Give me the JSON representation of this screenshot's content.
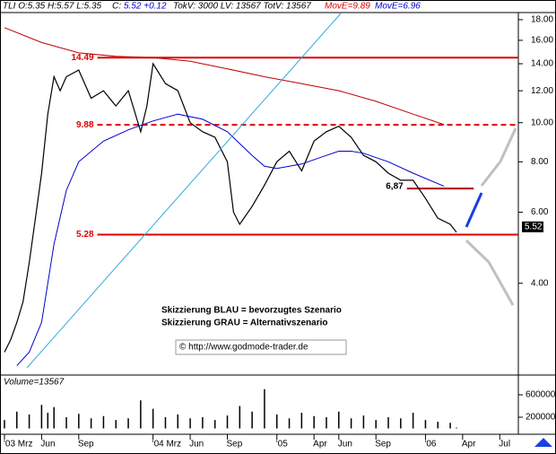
{
  "header": {
    "symbol_ohl": "TLI O:5.35 H:5.57 L:5.35",
    "close_label": "C:",
    "close_change": "5.52 +0.12",
    "volumes": "TokV: 3000 LV: 13567 TotV: 13567",
    "move_red": "MovE=9.89",
    "move_blue": "MovE=6.96"
  },
  "notes": {
    "line1": "Skizzierung BLAU = bevorzugtes Szenario",
    "line2": "Skizzierung GRAU = Alternativszenario",
    "copyright": "© http://www.godmode-trader.de"
  },
  "chart_data": [
    {
      "type": "line",
      "log_scale": true,
      "xlim": [
        1.64,
        43.5
      ],
      "ylim": [
        2.37,
        18.65
      ],
      "xticks": [
        {
          "value": 2,
          "label": "'03 Mrz"
        },
        {
          "value": 5,
          "label": "Jun"
        },
        {
          "value": 8,
          "label": "Sep"
        },
        {
          "value": 14,
          "label": "'04 Mrz"
        },
        {
          "value": 17,
          "label": "Jun"
        },
        {
          "value": 20,
          "label": "Sep"
        },
        {
          "value": 24,
          "label": "'05"
        },
        {
          "value": 27,
          "label": "Apr"
        },
        {
          "value": 29,
          "label": "Jun"
        },
        {
          "value": 32,
          "label": "Sep"
        },
        {
          "value": 36,
          "label": "'06"
        },
        {
          "value": 39,
          "label": "Apr"
        },
        {
          "value": 42,
          "label": "Jul"
        }
      ],
      "yticks": [
        {
          "value": 4,
          "label": "4.00"
        },
        {
          "value": 6,
          "label": "6.00"
        },
        {
          "value": 8,
          "label": "8.00"
        },
        {
          "value": 10,
          "label": "10.00"
        },
        {
          "value": 12,
          "label": "12.00"
        },
        {
          "value": 14,
          "label": "14.00"
        },
        {
          "value": 16,
          "label": "16.00"
        },
        {
          "value": 18,
          "label": "18.00"
        }
      ],
      "series": [
        {
          "color": "#000000",
          "x": [
            2,
            2.5,
            3,
            3.5,
            4,
            4.5,
            5,
            5.5,
            6,
            6.5,
            7,
            8,
            9,
            10,
            11,
            12,
            13,
            13.5,
            14,
            15,
            16,
            17,
            18,
            19,
            20,
            20.5,
            21,
            22,
            23,
            24,
            25,
            26,
            27,
            28,
            29,
            30,
            31,
            32,
            33,
            34,
            35,
            36,
            37,
            38,
            38.5
          ],
          "values": [
            2.7,
            2.9,
            3.2,
            3.6,
            4.5,
            5.8,
            7.5,
            10.5,
            13,
            12,
            13,
            13.5,
            11.5,
            12,
            11,
            12,
            9.5,
            11,
            14,
            12.5,
            12,
            10,
            9.5,
            9.2,
            8,
            6,
            5.6,
            6.2,
            7,
            8,
            8.5,
            7.6,
            9,
            9.5,
            9.8,
            9.2,
            8.3,
            8,
            7.5,
            7.2,
            7.2,
            6.5,
            5.8,
            5.6,
            5.35
          ]
        },
        {
          "color": "#c00000",
          "x": [
            2,
            5,
            8,
            11,
            14,
            17,
            20,
            23,
            26,
            29,
            32,
            35,
            37.5
          ],
          "values": [
            17.2,
            15.8,
            14.9,
            14.6,
            14.5,
            14.2,
            13.6,
            13,
            12.5,
            12,
            11.3,
            10.5,
            9.89
          ]
        },
        {
          "color": "#0000cc",
          "x": [
            3,
            4,
            5,
            5.5,
            6,
            7,
            8,
            10,
            12,
            14,
            16,
            18,
            20,
            22,
            23,
            24,
            26,
            28,
            29,
            30,
            31,
            33,
            35,
            37.5
          ],
          "values": [
            2.5,
            2.7,
            3.2,
            4,
            5,
            6.8,
            8,
            9,
            9.6,
            10.1,
            10.5,
            10.2,
            9.5,
            8.3,
            7.8,
            7.7,
            7.9,
            8.3,
            8.5,
            8.5,
            8.4,
            8,
            7.5,
            6.96
          ]
        }
      ],
      "levels": [
        {
          "value": 14.49,
          "from": 9.5,
          "to": 43.5,
          "dashed": false,
          "color": "#e00000"
        },
        {
          "value": 9.88,
          "from": 9.5,
          "to": 43.5,
          "dashed": true,
          "color": "#e00000"
        },
        {
          "value": 5.28,
          "from": 9.5,
          "to": 43.5,
          "dashed": false,
          "color": "#e00000"
        },
        {
          "value": {
            "value": 6.87,
            "label": "6,87"
          },
          "from": 34.5,
          "to": 39.9,
          "dashed": false,
          "color": "#b00000"
        }
      ],
      "last_price": 5.52
    },
    {
      "type": "bar",
      "title": "Volume=13567",
      "color": "#000000",
      "xlim": [
        1.64,
        43.5
      ],
      "ylim": [
        0,
        888000
      ],
      "yticks": [
        200000,
        600000
      ],
      "x": [
        2,
        3,
        4,
        5,
        5.5,
        6,
        7,
        8,
        9,
        10,
        11,
        12,
        13,
        14,
        15,
        16,
        17,
        18,
        19,
        20,
        21,
        22,
        23,
        24,
        25,
        26,
        27,
        28,
        29,
        30,
        31,
        32,
        33,
        34,
        35,
        36,
        37,
        38,
        38.5
      ],
      "values": [
        150000,
        300000,
        250000,
        420000,
        280000,
        380000,
        200000,
        260000,
        180000,
        220000,
        150000,
        180000,
        500000,
        350000,
        200000,
        250000,
        180000,
        200000,
        150000,
        230000,
        400000,
        300000,
        700000,
        250000,
        180000,
        280000,
        220000,
        200000,
        300000,
        180000,
        230000,
        150000,
        200000,
        180000,
        280000,
        150000,
        120000,
        100000,
        13567
      ]
    }
  ]
}
